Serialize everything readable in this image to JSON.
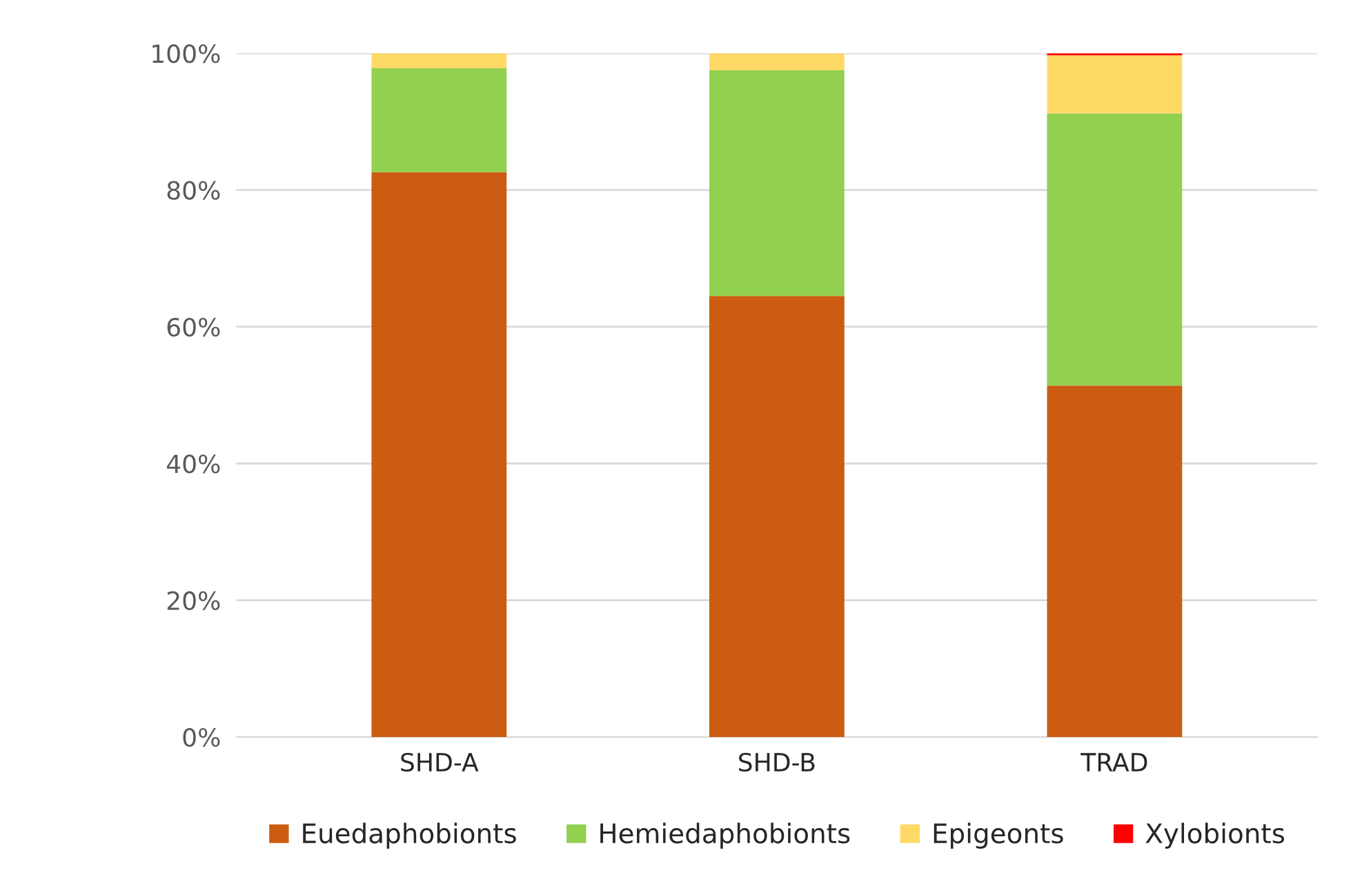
{
  "chart_data": {
    "type": "bar",
    "stacked": true,
    "categories": [
      "SHD-A",
      "SHD-B",
      "TRAD"
    ],
    "series": [
      {
        "name": "Euedaphobionts",
        "color": "#cc5c11",
        "values": [
          82.6,
          64.5,
          51.4
        ]
      },
      {
        "name": "Hemiedaphobionts",
        "color": "#92d050",
        "values": [
          15.2,
          33.0,
          39.8
        ]
      },
      {
        "name": "Epigeonts",
        "color": "#ffd966",
        "values": [
          2.2,
          2.5,
          8.5
        ]
      },
      {
        "name": "Xylobionts",
        "color": "#ff0000",
        "values": [
          null,
          null,
          0.3
        ]
      }
    ],
    "ylim": [
      0,
      100
    ],
    "yticks": [
      {
        "value": 0,
        "label": "0%"
      },
      {
        "value": 20,
        "label": "20%"
      },
      {
        "value": 40,
        "label": "40%"
      },
      {
        "value": 60,
        "label": "60%"
      },
      {
        "value": 80,
        "label": "80%"
      },
      {
        "value": 100,
        "label": "100%"
      }
    ],
    "grid": "y",
    "legend": "bottom"
  }
}
